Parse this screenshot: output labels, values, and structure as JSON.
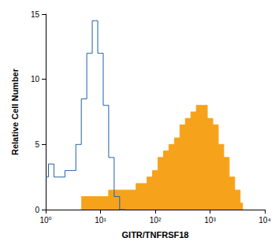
{
  "chart_data": {
    "type": "line",
    "x_label": "GITR/TNFRSF18",
    "y_label": "Relative Cell Number",
    "log": "x",
    "grid": false,
    "xlim": [
      1,
      10000
    ],
    "xticks": [
      {
        "value": 1,
        "label": "10⁰"
      },
      {
        "value": 10,
        "label": "10¹"
      },
      {
        "value": 100,
        "label": "10²"
      },
      {
        "value": 1000,
        "label": "10³"
      },
      {
        "value": 10000,
        "label": "10⁴"
      }
    ],
    "ylim": [
      0,
      15
    ],
    "yticks": [
      0,
      5,
      10,
      15
    ],
    "x": [
      1,
      1.26,
      1.58,
      2,
      2.51,
      3.16,
      3.98,
      5.01,
      6.31,
      7.94,
      10,
      12.6,
      15.8,
      20,
      25.1,
      31.6,
      39.8,
      50.1,
      63.1,
      79.4,
      100,
      126,
      158,
      200,
      251,
      316,
      398,
      501,
      631,
      794,
      1000,
      1259,
      1585,
      1995,
      2512,
      3162,
      3981
    ],
    "series": [
      {
        "type": "line",
        "color": "#1f5fa8",
        "values": [
          2.5,
          3.5,
          2.5,
          2.5,
          3,
          3,
          5,
          8.5,
          12,
          14.5,
          12,
          8,
          4,
          1,
          0,
          null,
          null,
          null,
          null,
          null,
          null,
          null,
          null,
          null,
          null,
          null,
          null,
          null,
          null,
          null,
          null,
          null,
          null,
          null,
          null,
          null,
          null
        ]
      },
      {
        "type": "area",
        "color": "#f7a21b",
        "values": [
          null,
          null,
          null,
          null,
          null,
          null,
          null,
          1,
          1,
          1,
          1,
          1,
          1.5,
          1.5,
          1.5,
          1.5,
          1.5,
          2,
          2,
          2.5,
          3,
          4,
          4.5,
          5,
          5.5,
          6.5,
          7,
          7.5,
          8,
          8,
          7,
          6.5,
          5,
          4,
          2.5,
          1.5,
          0.5
        ]
      }
    ]
  }
}
